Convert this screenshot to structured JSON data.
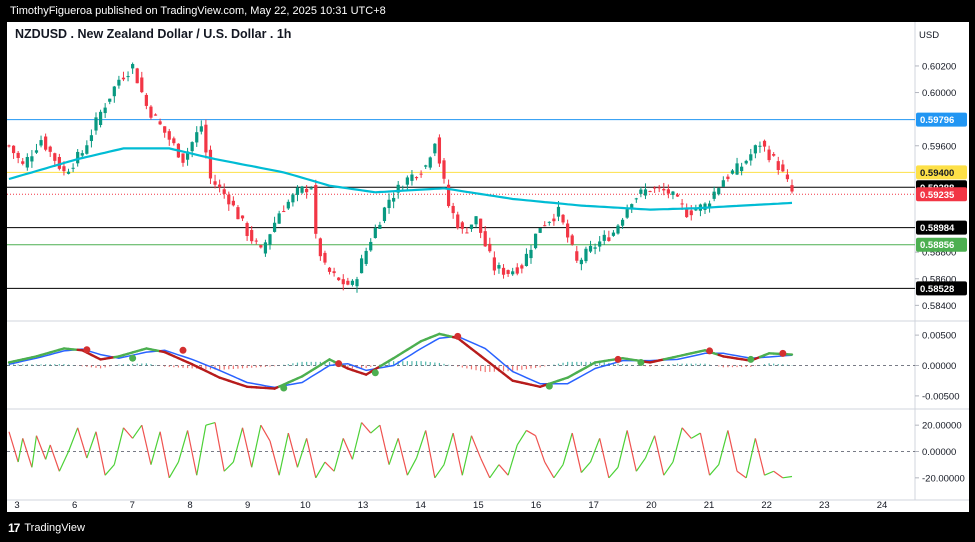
{
  "publisher_line": "TimothyFigueroa published on TradingView.com, May 22, 2025 10:31 UTC+8",
  "brand": {
    "logo": "17",
    "name": "TradingView"
  },
  "chart_data": [
    {
      "type": "candlestick",
      "title": "NZDUSD . New Zealand Dollar / U.S. Dollar . 1h",
      "currency": "USD",
      "ylim": [
        0.5832,
        0.6035
      ],
      "yticks": [
        "0.60200",
        "0.60000",
        "0.59600",
        "0.58800",
        "0.58600",
        "0.58400"
      ],
      "x_labels": [
        "3",
        "6",
        "7",
        "8",
        "9",
        "10",
        "13",
        "14",
        "15",
        "16",
        "17",
        "20",
        "21",
        "22",
        "23",
        "24"
      ],
      "price_curve": [
        [
          0,
          0.596
        ],
        [
          3,
          0.5945
        ],
        [
          7,
          0.5965
        ],
        [
          12,
          0.594
        ],
        [
          16,
          0.5955
        ],
        [
          20,
          0.5985
        ],
        [
          24,
          0.601
        ],
        [
          27,
          0.602
        ],
        [
          30,
          0.599
        ],
        [
          34,
          0.597
        ],
        [
          38,
          0.595
        ],
        [
          42,
          0.5975
        ],
        [
          44,
          0.5935
        ],
        [
          48,
          0.592
        ],
        [
          52,
          0.5895
        ],
        [
          55,
          0.588
        ],
        [
          59,
          0.591
        ],
        [
          63,
          0.5925
        ],
        [
          66,
          0.593
        ],
        [
          67,
          0.589
        ],
        [
          69,
          0.5868
        ],
        [
          72,
          0.5858
        ],
        [
          75,
          0.5855
        ],
        [
          79,
          0.589
        ],
        [
          83,
          0.592
        ],
        [
          87,
          0.5935
        ],
        [
          91,
          0.5945
        ],
        [
          93,
          0.5965
        ],
        [
          96,
          0.5915
        ],
        [
          99,
          0.5895
        ],
        [
          102,
          0.5905
        ],
        [
          104,
          0.5885
        ],
        [
          106,
          0.5868
        ],
        [
          109,
          0.5865
        ],
        [
          112,
          0.587
        ],
        [
          116,
          0.59
        ],
        [
          120,
          0.591
        ],
        [
          124,
          0.5872
        ],
        [
          128,
          0.5885
        ],
        [
          132,
          0.5895
        ],
        [
          136,
          0.592
        ],
        [
          140,
          0.5928
        ],
        [
          144,
          0.5925
        ],
        [
          148,
          0.591
        ],
        [
          152,
          0.5915
        ],
        [
          156,
          0.5935
        ],
        [
          160,
          0.5945
        ],
        [
          164,
          0.5962
        ],
        [
          168,
          0.5945
        ],
        [
          171,
          0.5925
        ]
      ],
      "moving_average": [
        [
          0,
          0.5935
        ],
        [
          15,
          0.595
        ],
        [
          25,
          0.5958
        ],
        [
          35,
          0.5958
        ],
        [
          45,
          0.595
        ],
        [
          60,
          0.594
        ],
        [
          70,
          0.593
        ],
        [
          80,
          0.5925
        ],
        [
          95,
          0.5928
        ],
        [
          110,
          0.592
        ],
        [
          125,
          0.5915
        ],
        [
          140,
          0.5912
        ],
        [
          150,
          0.5913
        ],
        [
          160,
          0.5915
        ],
        [
          171,
          0.5917
        ]
      ],
      "horizontal_levels": [
        {
          "price": 0.59796,
          "label": "0.59796",
          "color": "#2196f3",
          "style": "solid"
        },
        {
          "price": 0.594,
          "label": "0.59400",
          "color": "#fde047",
          "style": "solid"
        },
        {
          "price": 0.59288,
          "label": "0.59288",
          "color": "#000000",
          "style": "solid"
        },
        {
          "price": 0.59235,
          "label": "0.59235",
          "color": "#f23645",
          "style": "dotted"
        },
        {
          "price": 0.58984,
          "label": "0.58984",
          "color": "#000000",
          "style": "solid"
        },
        {
          "price": 0.58856,
          "label": "0.58856",
          "color": "#4caf50",
          "style": "solid"
        },
        {
          "price": 0.58528,
          "label": "0.58528",
          "color": "#000000",
          "style": "solid"
        }
      ]
    },
    {
      "type": "line",
      "name": "oscillator",
      "ylim": [
        -0.0065,
        0.0065
      ],
      "yticks": [
        "0.00500",
        "0.00000",
        "-0.00500"
      ],
      "fast": [
        [
          0,
          0.0005
        ],
        [
          6,
          0.0015
        ],
        [
          12,
          0.0028
        ],
        [
          16,
          0.0025
        ],
        [
          20,
          0.001
        ],
        [
          24,
          0.0015
        ],
        [
          30,
          0.0028
        ],
        [
          34,
          0.0022
        ],
        [
          40,
          0.0002
        ],
        [
          46,
          -0.002
        ],
        [
          52,
          -0.0035
        ],
        [
          58,
          -0.0038
        ],
        [
          64,
          -0.0018
        ],
        [
          70,
          0.001
        ],
        [
          74,
          -0.0005
        ],
        [
          78,
          -0.0015
        ],
        [
          84,
          0.0012
        ],
        [
          90,
          0.004
        ],
        [
          94,
          0.0052
        ],
        [
          98,
          0.0045
        ],
        [
          104,
          0.001
        ],
        [
          110,
          -0.0025
        ],
        [
          116,
          -0.0035
        ],
        [
          122,
          -0.002
        ],
        [
          128,
          0.0005
        ],
        [
          134,
          0.0012
        ],
        [
          140,
          0.0005
        ],
        [
          146,
          0.0015
        ],
        [
          152,
          0.0025
        ],
        [
          156,
          0.0015
        ],
        [
          162,
          0.0008
        ],
        [
          166,
          0.002
        ],
        [
          171,
          0.0018
        ]
      ],
      "slow": [
        [
          0,
          0.0002
        ],
        [
          6,
          0.0012
        ],
        [
          12,
          0.0024
        ],
        [
          16,
          0.0027
        ],
        [
          20,
          0.0018
        ],
        [
          24,
          0.0012
        ],
        [
          30,
          0.0022
        ],
        [
          34,
          0.0025
        ],
        [
          40,
          0.001
        ],
        [
          46,
          -0.0008
        ],
        [
          52,
          -0.0028
        ],
        [
          58,
          -0.0036
        ],
        [
          64,
          -0.0028
        ],
        [
          70,
          0.0
        ],
        [
          74,
          0.0003
        ],
        [
          78,
          -0.0008
        ],
        [
          84,
          0.0
        ],
        [
          90,
          0.0028
        ],
        [
          94,
          0.0045
        ],
        [
          98,
          0.0048
        ],
        [
          104,
          0.0028
        ],
        [
          110,
          -0.001
        ],
        [
          116,
          -0.003
        ],
        [
          122,
          -0.003
        ],
        [
          128,
          -0.0005
        ],
        [
          134,
          0.0008
        ],
        [
          140,
          0.0008
        ],
        [
          146,
          0.001
        ],
        [
          152,
          0.002
        ],
        [
          156,
          0.002
        ],
        [
          162,
          0.0012
        ],
        [
          166,
          0.0014
        ],
        [
          171,
          0.0017
        ]
      ],
      "signal_dots": [
        [
          17,
          0.0026,
          "red"
        ],
        [
          27,
          0.0012,
          "green"
        ],
        [
          38,
          0.0025,
          "red"
        ],
        [
          60,
          -0.0037,
          "green"
        ],
        [
          72,
          0.0003,
          "red"
        ],
        [
          80,
          -0.0012,
          "green"
        ],
        [
          98,
          0.0048,
          "red"
        ],
        [
          118,
          -0.0034,
          "green"
        ],
        [
          133,
          0.001,
          "red"
        ],
        [
          138,
          0.0005,
          "green"
        ],
        [
          153,
          0.0024,
          "red"
        ],
        [
          162,
          0.001,
          "green"
        ],
        [
          169,
          0.002,
          "red"
        ]
      ]
    },
    {
      "type": "line",
      "name": "momentum",
      "ylim": [
        -30,
        30
      ],
      "yticks": [
        "20.00000",
        "0.00000",
        "-20.00000"
      ],
      "values": [
        [
          0,
          15
        ],
        [
          2,
          -8
        ],
        [
          3,
          10
        ],
        [
          5,
          -12
        ],
        [
          6,
          12
        ],
        [
          8,
          -6
        ],
        [
          9,
          5
        ],
        [
          11,
          -15
        ],
        [
          13,
          0
        ],
        [
          15,
          18
        ],
        [
          17,
          -5
        ],
        [
          19,
          15
        ],
        [
          21,
          -18
        ],
        [
          23,
          -10
        ],
        [
          25,
          18
        ],
        [
          27,
          10
        ],
        [
          29,
          20
        ],
        [
          31,
          -10
        ],
        [
          33,
          15
        ],
        [
          35,
          -20
        ],
        [
          37,
          -8
        ],
        [
          39,
          16
        ],
        [
          41,
          -18
        ],
        [
          43,
          20
        ],
        [
          45,
          22
        ],
        [
          47,
          -15
        ],
        [
          49,
          -8
        ],
        [
          51,
          18
        ],
        [
          53,
          -12
        ],
        [
          55,
          20
        ],
        [
          57,
          8
        ],
        [
          59,
          -18
        ],
        [
          61,
          14
        ],
        [
          63,
          -12
        ],
        [
          65,
          10
        ],
        [
          67,
          -20
        ],
        [
          69,
          -8
        ],
        [
          71,
          -15
        ],
        [
          73,
          10
        ],
        [
          75,
          -6
        ],
        [
          77,
          22
        ],
        [
          79,
          14
        ],
        [
          81,
          20
        ],
        [
          83,
          -10
        ],
        [
          85,
          10
        ],
        [
          87,
          -18
        ],
        [
          89,
          -5
        ],
        [
          91,
          16
        ],
        [
          93,
          -20
        ],
        [
          95,
          -10
        ],
        [
          97,
          14
        ],
        [
          99,
          -18
        ],
        [
          101,
          12
        ],
        [
          103,
          -5
        ],
        [
          105,
          -20
        ],
        [
          107,
          -10
        ],
        [
          109,
          -18
        ],
        [
          111,
          5
        ],
        [
          113,
          16
        ],
        [
          115,
          12
        ],
        [
          117,
          -8
        ],
        [
          119,
          -20
        ],
        [
          121,
          -10
        ],
        [
          123,
          14
        ],
        [
          125,
          -16
        ],
        [
          127,
          -8
        ],
        [
          129,
          10
        ],
        [
          131,
          -20
        ],
        [
          133,
          -12
        ],
        [
          135,
          16
        ],
        [
          137,
          -15
        ],
        [
          139,
          -5
        ],
        [
          141,
          12
        ],
        [
          143,
          -18
        ],
        [
          145,
          -8
        ],
        [
          147,
          18
        ],
        [
          149,
          10
        ],
        [
          151,
          14
        ],
        [
          153,
          -18
        ],
        [
          155,
          -10
        ],
        [
          157,
          16
        ],
        [
          159,
          -15
        ],
        [
          161,
          -20
        ],
        [
          163,
          10
        ],
        [
          165,
          -18
        ],
        [
          167,
          -15
        ],
        [
          169,
          -20
        ],
        [
          171,
          -19
        ]
      ]
    }
  ]
}
